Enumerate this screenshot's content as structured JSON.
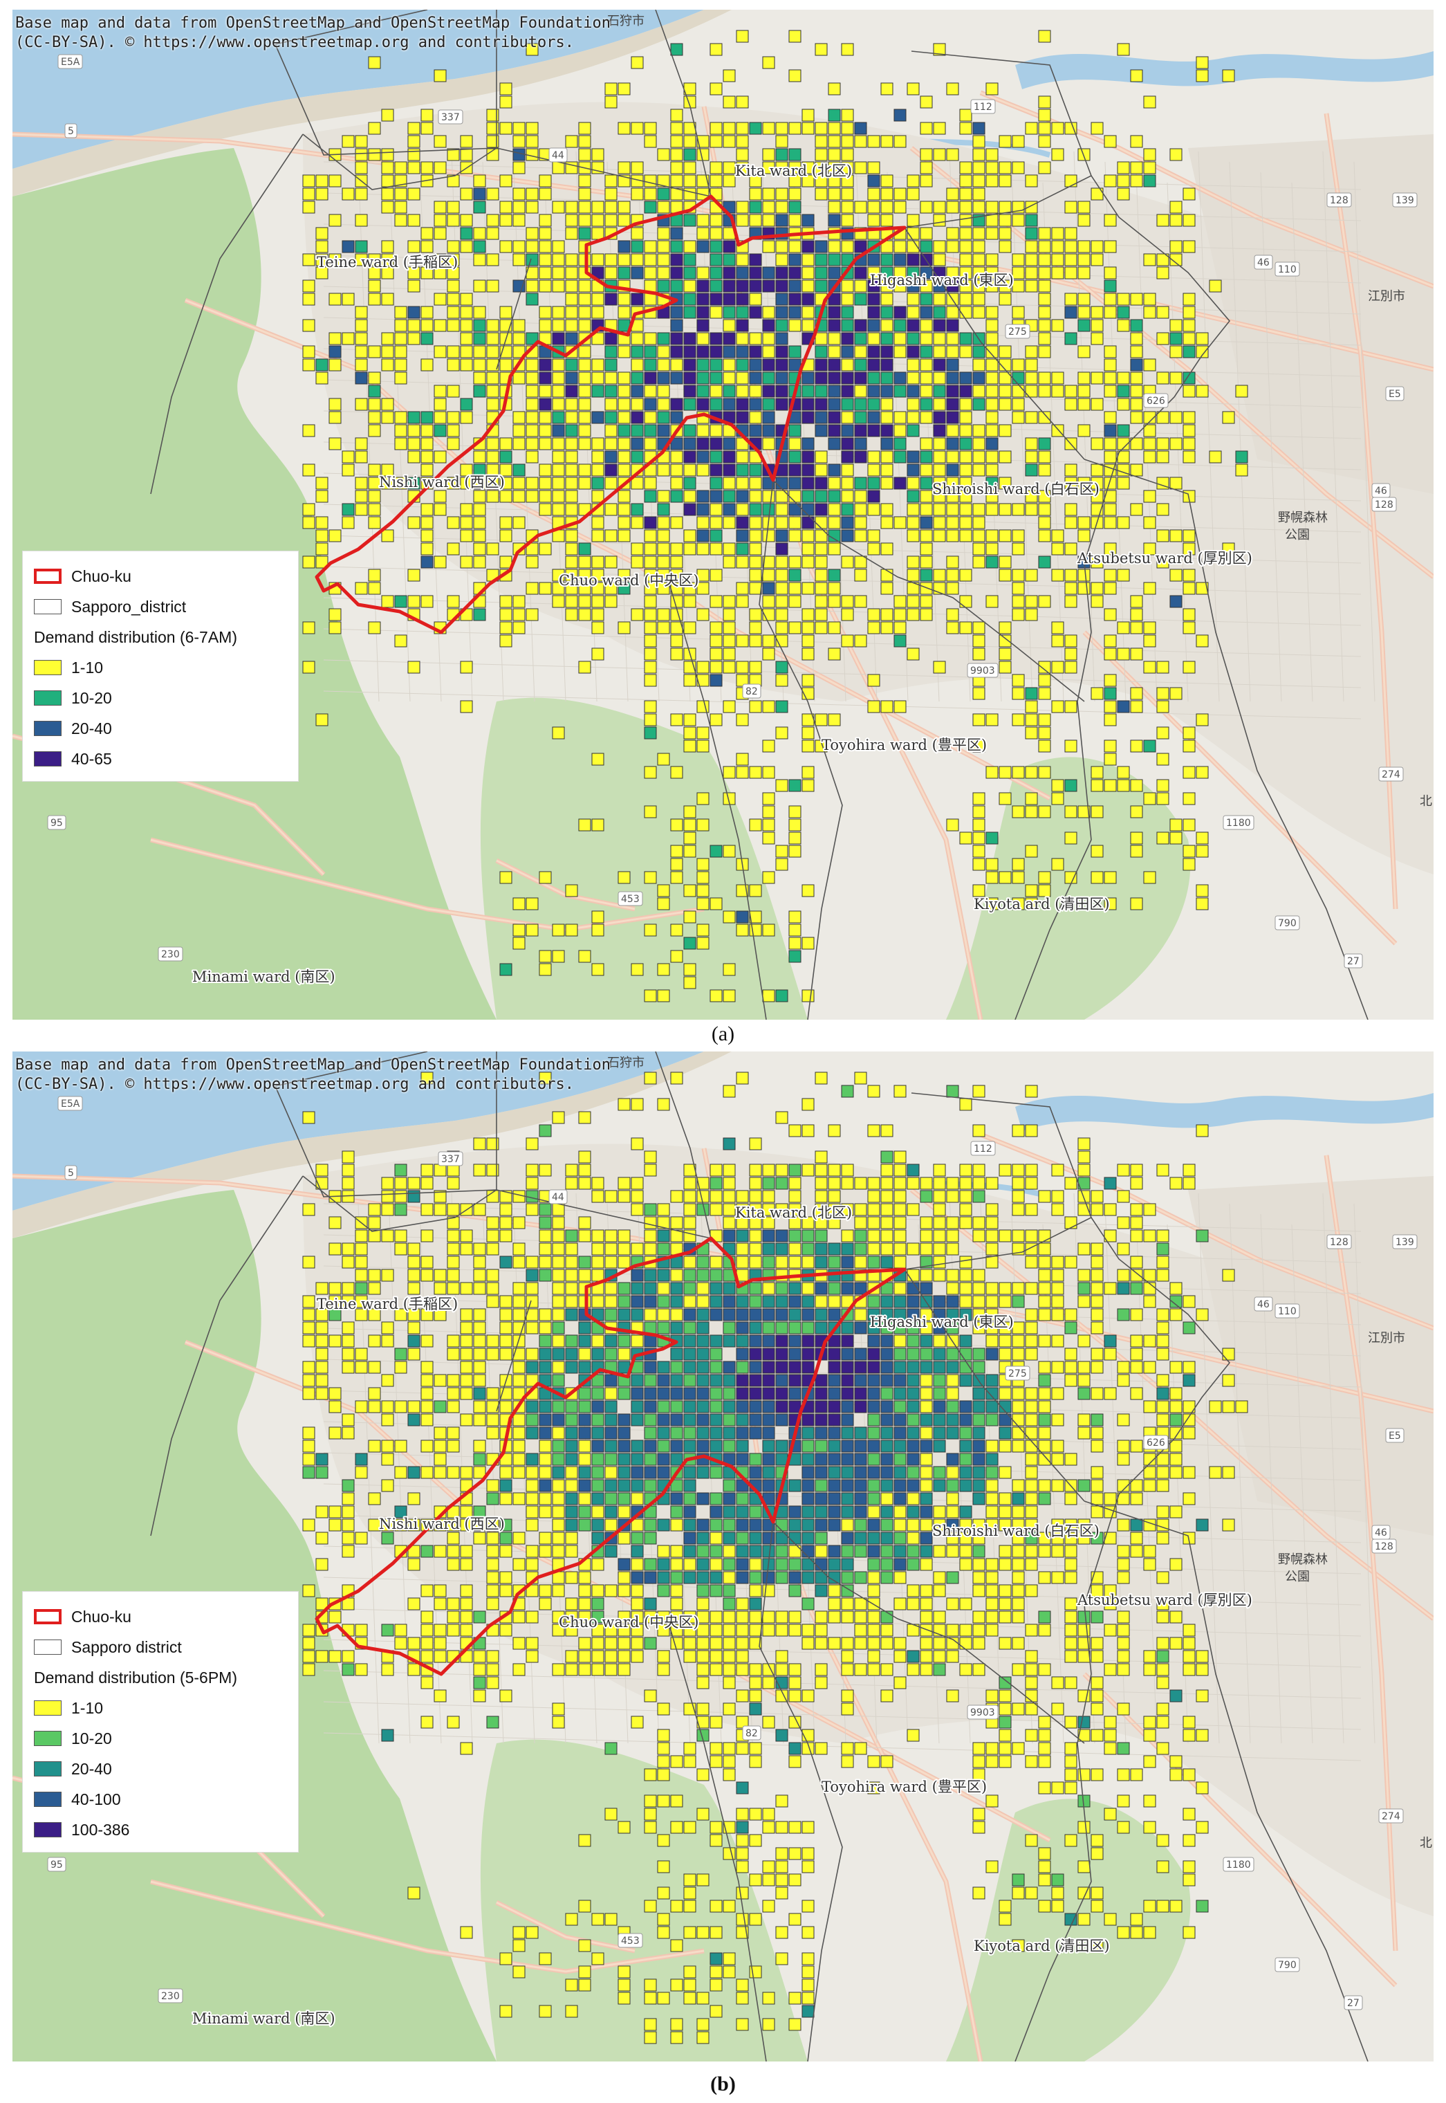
{
  "attribution": {
    "line1": "Base map and data from OpenStreetMap and OpenStreetMap Foundation",
    "line2": "(CC-BY-SA). © https://www.openstreetmap.org and contributors."
  },
  "ward_labels": {
    "kita": "Kita ward (北区)",
    "teine": "Teine ward (手稲区)",
    "higashi": "Higashi ward (東区)",
    "nishi": "Nishi ward (西区)",
    "shiroishi": "Shiroishi ward (白石区)",
    "chuo": "Chuo ward (中央区)",
    "atsubetsu": "Atsubetsu ward (厚別区)",
    "toyohira": "Toyohira ward (豊平区)",
    "kiyota": "Kiyota ard (清田区)",
    "minami": "Minami ward (南区)"
  },
  "map_text": {
    "ebetsu": "江別市",
    "ishikari": "石狩市",
    "kita_ku_short": "北",
    "nopporo": "野幌森林",
    "koen": "公園",
    "road_numbers": [
      "5",
      "337",
      "44",
      "112",
      "128",
      "139",
      "110",
      "46",
      "275",
      "626",
      "46",
      "128",
      "9903",
      "274",
      "1180",
      "82",
      "453",
      "230",
      "95",
      "790",
      "27",
      "E5A",
      "E5"
    ]
  },
  "colors": {
    "chuo_boundary": "#e01e1e",
    "district_boundary": "#555555",
    "water": "#a9cde6",
    "forest": "#b9d9a5",
    "urban": "#e6e2da",
    "cell_outline": "#333333"
  },
  "panel_a": {
    "caption": "(a)",
    "legend": {
      "chuo": "Chuo-ku",
      "district": "Sapporo_district",
      "title": "Demand distribution (6-7AM)",
      "classes": [
        {
          "label": "1-10",
          "color": "#ffff33"
        },
        {
          "label": "10-20",
          "color": "#21b07d"
        },
        {
          "label": "20-40",
          "color": "#2b5c93"
        },
        {
          "label": "40-65",
          "color": "#3b1e86"
        }
      ]
    }
  },
  "panel_b": {
    "caption": "(b)",
    "legend": {
      "chuo": "Chuo-ku",
      "district": "Sapporo district",
      "title": "Demand distribution (5-6PM)",
      "classes": [
        {
          "label": "1-10",
          "color": "#ffff33"
        },
        {
          "label": "10-20",
          "color": "#5ac864"
        },
        {
          "label": "20-40",
          "color": "#21918c"
        },
        {
          "label": "40-100",
          "color": "#2b5c93"
        },
        {
          "label": "100-386",
          "color": "#3b1e86"
        }
      ]
    }
  }
}
